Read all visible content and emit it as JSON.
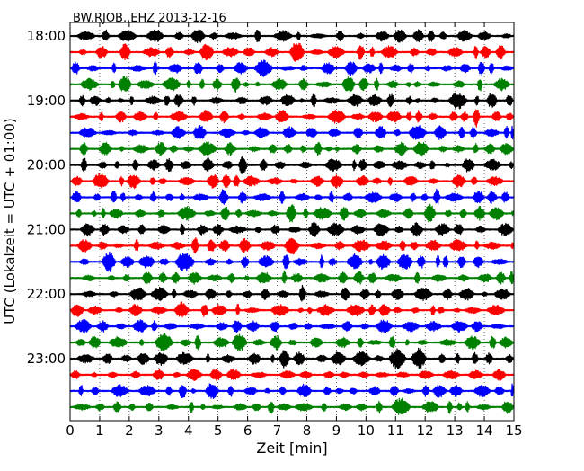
{
  "chart_data": {
    "type": "line",
    "title": "BW.RJOB..EHZ 2013-12-16",
    "xlabel": "Zeit  [min]",
    "ylabel": "UTC (Lokalzeit = UTC + 01:00)",
    "xlim": [
      0,
      15
    ],
    "xticks": [
      "0",
      "1",
      "2",
      "3",
      "4",
      "5",
      "6",
      "7",
      "8",
      "9",
      "10",
      "11",
      "12",
      "13",
      "14",
      "15"
    ],
    "yticks": [
      "18:00",
      "19:00",
      "20:00",
      "21:00",
      "22:00",
      "23:00"
    ],
    "row_interval_minutes": 15,
    "rows_per_hour": 4,
    "series_colors": [
      "#000000",
      "#ff0000",
      "#0000ff",
      "#008000"
    ],
    "grid": {
      "vertical_dotted_every_minute": true
    },
    "traces": [
      {
        "start": "18:00"
      },
      {
        "start": "18:15"
      },
      {
        "start": "18:30"
      },
      {
        "start": "18:45"
      },
      {
        "start": "19:00"
      },
      {
        "start": "19:15"
      },
      {
        "start": "19:30"
      },
      {
        "start": "19:45"
      },
      {
        "start": "20:00"
      },
      {
        "start": "20:15"
      },
      {
        "start": "20:30"
      },
      {
        "start": "20:45"
      },
      {
        "start": "21:00"
      },
      {
        "start": "21:15"
      },
      {
        "start": "21:30"
      },
      {
        "start": "21:45"
      },
      {
        "start": "22:00"
      },
      {
        "start": "22:15"
      },
      {
        "start": "22:30"
      },
      {
        "start": "22:45"
      },
      {
        "start": "23:00"
      },
      {
        "start": "23:15"
      },
      {
        "start": "23:30"
      },
      {
        "start": "23:45"
      }
    ]
  }
}
